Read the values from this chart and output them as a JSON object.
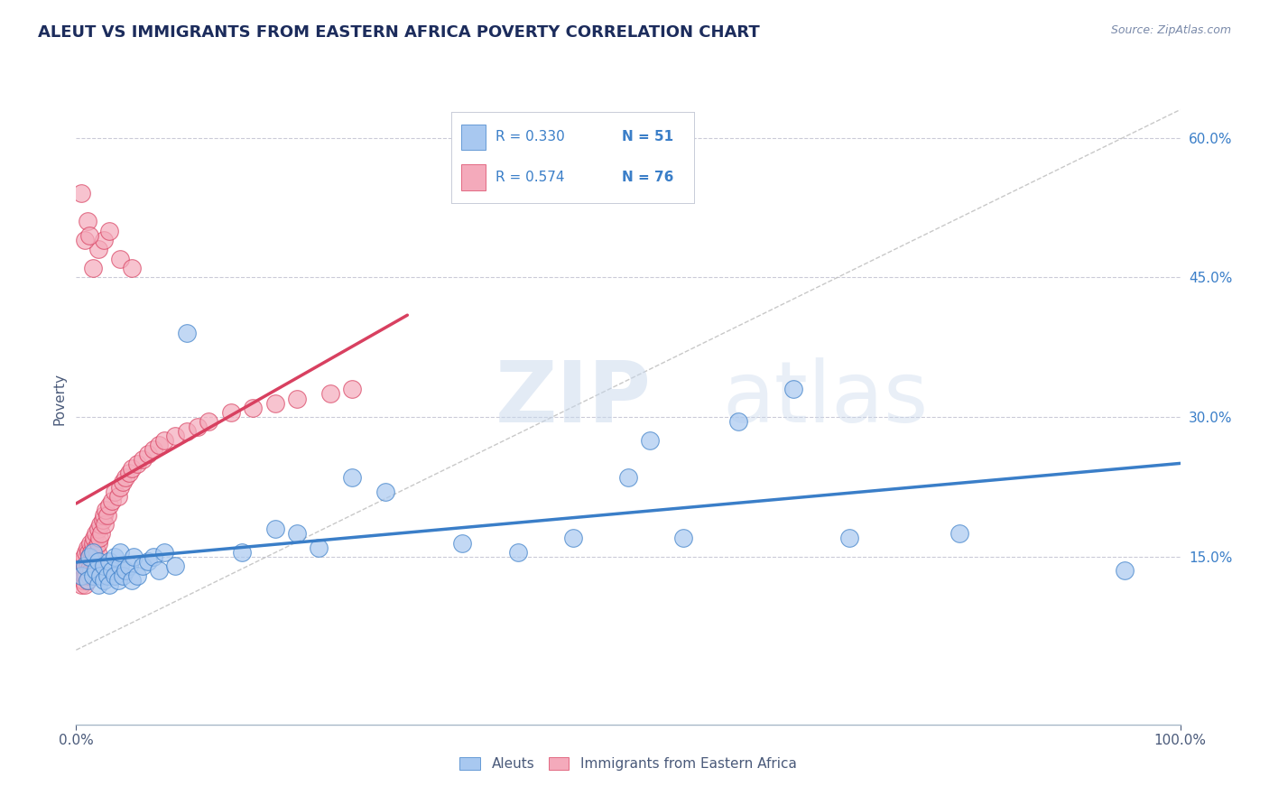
{
  "title": "ALEUT VS IMMIGRANTS FROM EASTERN AFRICA POVERTY CORRELATION CHART",
  "source_text": "Source: ZipAtlas.com",
  "ylabel": "Poverty",
  "watermark_zip": "ZIP",
  "watermark_atlas": "atlas",
  "xlim": [
    0,
    1.0
  ],
  "ylim": [
    -0.03,
    0.67
  ],
  "xtick_labels": [
    "0.0%",
    "100.0%"
  ],
  "xtick_positions": [
    0.0,
    1.0
  ],
  "ytick_labels": [
    "15.0%",
    "30.0%",
    "45.0%",
    "60.0%"
  ],
  "ytick_positions": [
    0.15,
    0.3,
    0.45,
    0.6
  ],
  "series1_color": "#A8C8F0",
  "series2_color": "#F4AABB",
  "line1_color": "#3A7EC8",
  "line2_color": "#D84060",
  "diag_color": "#BBBBBB",
  "background_color": "#FFFFFF",
  "grid_color": "#CACAD8",
  "title_color": "#1C2C5C",
  "axis_label_color": "#4A5A7A",
  "ytick_color": "#3A7EC8",
  "aleuts_x": [
    0.005,
    0.008,
    0.01,
    0.012,
    0.015,
    0.015,
    0.018,
    0.02,
    0.02,
    0.022,
    0.025,
    0.025,
    0.028,
    0.03,
    0.03,
    0.032,
    0.035,
    0.035,
    0.038,
    0.04,
    0.04,
    0.042,
    0.045,
    0.048,
    0.05,
    0.052,
    0.055,
    0.06,
    0.065,
    0.07,
    0.075,
    0.08,
    0.09,
    0.1,
    0.15,
    0.18,
    0.2,
    0.22,
    0.25,
    0.28,
    0.35,
    0.4,
    0.45,
    0.5,
    0.52,
    0.55,
    0.6,
    0.65,
    0.7,
    0.8,
    0.95
  ],
  "aleuts_y": [
    0.13,
    0.14,
    0.125,
    0.15,
    0.13,
    0.155,
    0.135,
    0.12,
    0.145,
    0.13,
    0.125,
    0.14,
    0.13,
    0.12,
    0.145,
    0.135,
    0.13,
    0.15,
    0.125,
    0.14,
    0.155,
    0.13,
    0.135,
    0.14,
    0.125,
    0.15,
    0.13,
    0.14,
    0.145,
    0.15,
    0.135,
    0.155,
    0.14,
    0.39,
    0.155,
    0.18,
    0.175,
    0.16,
    0.235,
    0.22,
    0.165,
    0.155,
    0.17,
    0.235,
    0.275,
    0.17,
    0.295,
    0.33,
    0.17,
    0.175,
    0.135
  ],
  "immigrants_x": [
    0.003,
    0.004,
    0.005,
    0.005,
    0.006,
    0.006,
    0.007,
    0.007,
    0.008,
    0.008,
    0.009,
    0.009,
    0.01,
    0.01,
    0.01,
    0.011,
    0.011,
    0.012,
    0.012,
    0.013,
    0.013,
    0.014,
    0.014,
    0.015,
    0.015,
    0.016,
    0.016,
    0.017,
    0.018,
    0.018,
    0.019,
    0.02,
    0.02,
    0.021,
    0.022,
    0.023,
    0.024,
    0.025,
    0.026,
    0.027,
    0.028,
    0.03,
    0.032,
    0.035,
    0.038,
    0.04,
    0.042,
    0.045,
    0.048,
    0.05,
    0.055,
    0.06,
    0.065,
    0.07,
    0.075,
    0.08,
    0.09,
    0.1,
    0.11,
    0.12,
    0.14,
    0.16,
    0.18,
    0.2,
    0.23,
    0.25,
    0.015,
    0.02,
    0.025,
    0.03,
    0.04,
    0.05,
    0.005,
    0.008,
    0.01,
    0.012
  ],
  "immigrants_y": [
    0.13,
    0.135,
    0.12,
    0.14,
    0.125,
    0.145,
    0.13,
    0.15,
    0.12,
    0.14,
    0.13,
    0.155,
    0.125,
    0.14,
    0.16,
    0.135,
    0.155,
    0.13,
    0.15,
    0.14,
    0.165,
    0.135,
    0.155,
    0.145,
    0.165,
    0.15,
    0.17,
    0.145,
    0.16,
    0.175,
    0.155,
    0.165,
    0.18,
    0.17,
    0.185,
    0.175,
    0.19,
    0.195,
    0.185,
    0.2,
    0.195,
    0.205,
    0.21,
    0.22,
    0.215,
    0.225,
    0.23,
    0.235,
    0.24,
    0.245,
    0.25,
    0.255,
    0.26,
    0.265,
    0.27,
    0.275,
    0.28,
    0.285,
    0.29,
    0.295,
    0.305,
    0.31,
    0.315,
    0.32,
    0.325,
    0.33,
    0.46,
    0.48,
    0.49,
    0.5,
    0.47,
    0.46,
    0.54,
    0.49,
    0.51,
    0.495
  ]
}
